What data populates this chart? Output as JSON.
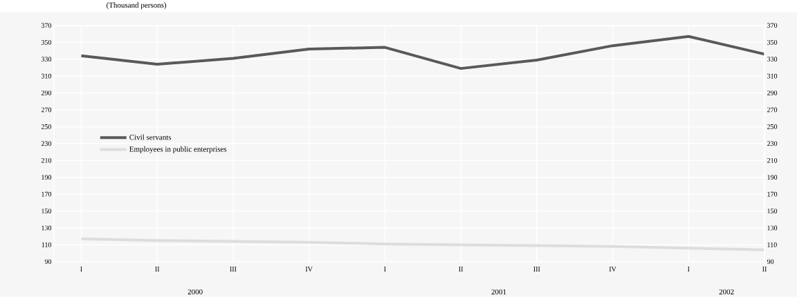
{
  "chart_data": {
    "type": "line",
    "ylabel": "(Thousand persons)",
    "categories": [
      "I",
      "II",
      "III",
      "IV",
      "I",
      "II",
      "III",
      "IV",
      "I",
      "II"
    ],
    "series": [
      {
        "name": "Civil servants",
        "color": "#595959",
        "values": [
          334,
          324,
          331,
          342,
          344,
          319,
          329,
          346,
          357,
          336
        ]
      },
      {
        "name": "Employees in public enterprises",
        "color": "#dddddd",
        "values": [
          117,
          115,
          114,
          113,
          111,
          110,
          109,
          108,
          106,
          104
        ]
      }
    ],
    "ylim": [
      90,
      370
    ],
    "yticks": [
      90,
      110,
      130,
      150,
      170,
      190,
      210,
      230,
      250,
      270,
      290,
      310,
      330,
      350,
      370
    ],
    "y2lim": [
      90,
      370
    ],
    "y2ticks": [
      90,
      110,
      130,
      150,
      170,
      190,
      210,
      230,
      250,
      270,
      290,
      310,
      330,
      350,
      370
    ],
    "annotations": [
      "2000",
      "2001",
      "2002"
    ],
    "grid": true,
    "legend": "left",
    "marker": "none",
    "line_style": "solid"
  }
}
